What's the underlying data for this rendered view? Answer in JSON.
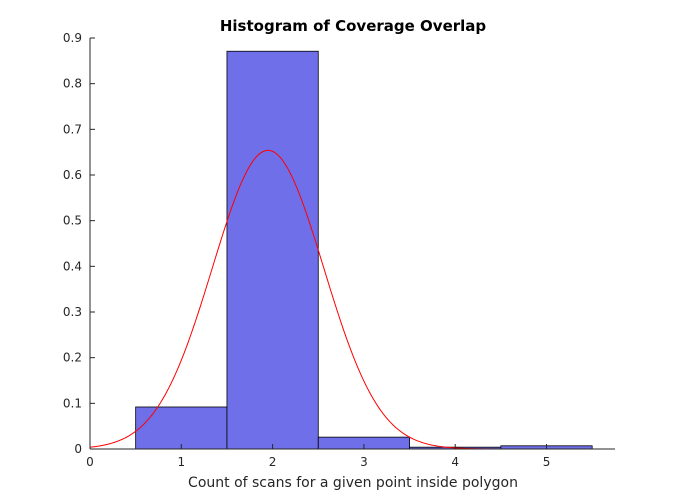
{
  "chart_data": {
    "type": "bar",
    "title": "Histogram of Coverage Overlap",
    "xlabel": "Count of scans for a given point inside polygon",
    "ylabel": "",
    "xlim": [
      0,
      5.75
    ],
    "ylim": [
      0,
      0.9
    ],
    "xticks": [
      0,
      1,
      2,
      3,
      4,
      5
    ],
    "yticks": [
      0,
      0.1,
      0.2,
      0.3,
      0.4,
      0.5,
      0.6,
      0.7,
      0.8,
      0.9
    ],
    "grid": false,
    "legend": "none",
    "bins": [
      {
        "x0": 0.5,
        "x1": 1.5,
        "value": 0.092
      },
      {
        "x0": 1.5,
        "x1": 2.5,
        "value": 0.871
      },
      {
        "x0": 2.5,
        "x1": 3.5,
        "value": 0.026
      },
      {
        "x0": 3.5,
        "x1": 4.5,
        "value": 0.004
      },
      {
        "x0": 4.5,
        "x1": 5.5,
        "value": 0.007
      }
    ],
    "fit_curve": {
      "kind": "normal-pdf",
      "mean": 1.95,
      "std": 0.61,
      "x_range": [
        0,
        5.5
      ]
    },
    "colors": {
      "bar_fill": "#6f6fea",
      "bar_edge": "#000000",
      "curve": "#ff0000",
      "axis": "#262626"
    }
  }
}
